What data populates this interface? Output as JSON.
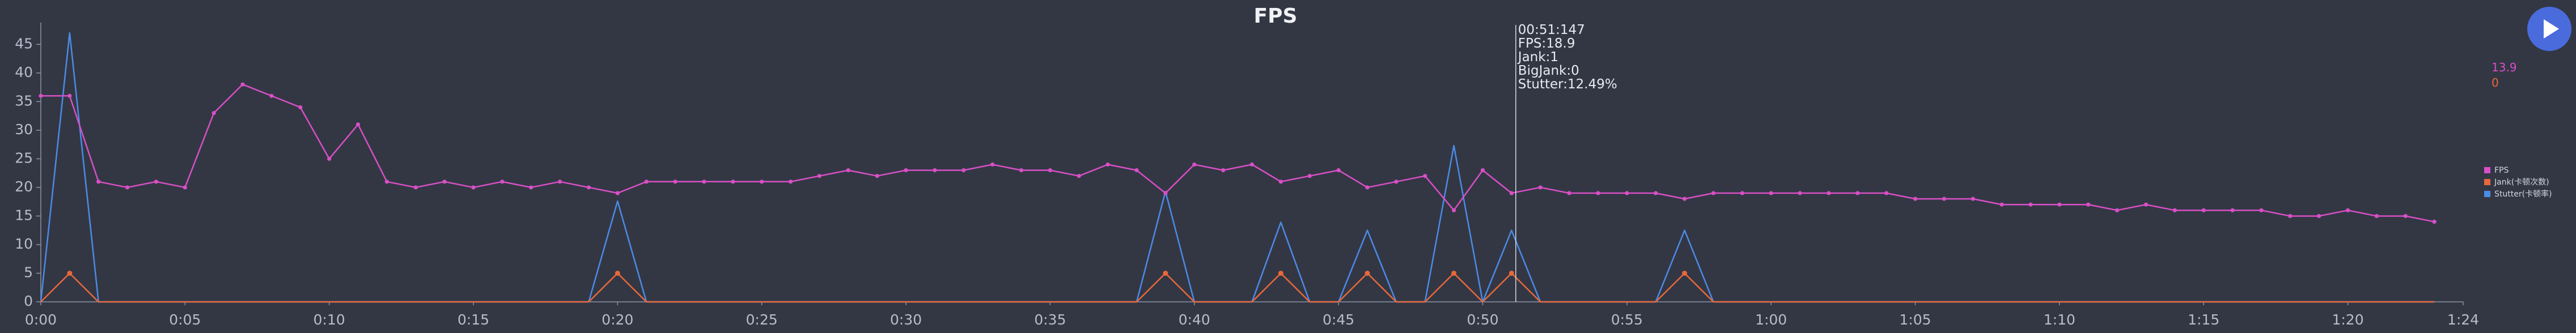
{
  "chart_data": {
    "type": "line",
    "title": "FPS",
    "x_tick_labels": [
      "0:00",
      "0:05",
      "0:10",
      "0:15",
      "0:20",
      "0:25",
      "0:30",
      "0:35",
      "0:40",
      "0:45",
      "0:50",
      "0:55",
      "1:00",
      "1:05",
      "1:10",
      "1:15",
      "1:20",
      "1:24"
    ],
    "y_tick_labels": [
      "0",
      "5",
      "10",
      "15",
      "20",
      "25",
      "30",
      "35",
      "40",
      "45"
    ],
    "xlim_seconds": [
      0,
      84
    ],
    "ylim": [
      0,
      48
    ],
    "grid": false,
    "legend_position": "right",
    "series": [
      {
        "name": "FPS",
        "color": "#d94fc6",
        "markers": true,
        "x": [
          0,
          1,
          2,
          3,
          4,
          5,
          6,
          7,
          8,
          9,
          10,
          11,
          12,
          13,
          14,
          15,
          16,
          17,
          18,
          19,
          20,
          21,
          22,
          23,
          24,
          25,
          26,
          27,
          28,
          29,
          30,
          31,
          32,
          33,
          34,
          35,
          36,
          37,
          38,
          39,
          40,
          41,
          42,
          43,
          44,
          45,
          46,
          47,
          48,
          49,
          50,
          51,
          52,
          53,
          54,
          55,
          56,
          57,
          58,
          59,
          60,
          61,
          62,
          63,
          64,
          65,
          66,
          67,
          68,
          69,
          70,
          71,
          72,
          73,
          74,
          75,
          76,
          77,
          78,
          79,
          80,
          81,
          82,
          83
        ],
        "values": [
          36,
          36,
          21,
          20,
          21,
          20,
          33,
          38,
          36,
          34,
          25,
          31,
          21,
          20,
          21,
          20,
          21,
          20,
          21,
          20,
          19,
          21,
          21,
          21,
          21,
          21,
          21,
          22,
          23,
          22,
          23,
          23,
          23,
          24,
          23,
          23,
          22,
          24,
          23,
          19,
          24,
          23,
          24,
          21,
          22,
          23,
          20,
          21,
          22,
          16,
          23,
          19,
          20,
          19,
          19,
          19,
          19,
          18,
          19,
          19,
          19,
          19,
          19,
          19,
          19,
          18,
          18,
          18,
          17,
          17,
          17,
          17,
          16,
          17,
          16,
          16,
          16,
          16,
          15,
          15,
          16,
          15,
          15,
          14
        ]
      },
      {
        "name": "Jank(卡顿次数)",
        "color": "#e8683b",
        "markers": false,
        "x": [
          0,
          1,
          2,
          19,
          20,
          21,
          38,
          39,
          40,
          42,
          43,
          44,
          45,
          46,
          47,
          48,
          49,
          50,
          51,
          52,
          56,
          57,
          58,
          83
        ],
        "values": [
          0,
          5,
          0,
          0,
          5,
          0,
          0,
          5,
          0,
          0,
          5,
          0,
          0,
          5,
          0,
          0,
          5,
          0,
          5,
          0,
          0,
          5,
          0,
          0
        ]
      },
      {
        "name": "Stutter(卡顿率)",
        "color": "#4b8be8",
        "markers": false,
        "x": [
          0,
          1,
          2,
          19,
          20,
          21,
          38,
          39,
          40,
          42,
          43,
          44,
          45,
          46,
          47,
          48,
          49,
          50,
          51,
          52,
          56,
          57,
          58,
          83
        ],
        "values": [
          0,
          47,
          0,
          0,
          17.6,
          0,
          0,
          19.3,
          0,
          0,
          13.9,
          0,
          0,
          12.5,
          0,
          0,
          27.3,
          0,
          12.5,
          0,
          0,
          12.5,
          0,
          0
        ]
      }
    ],
    "tooltip": {
      "x": 51.147,
      "lines": [
        "00:51:147",
        "FPS:18.9",
        "Jank:1",
        "BigJank:0",
        "Stutter:12.49%"
      ]
    },
    "current_values": [
      {
        "series": "FPS",
        "value": "13.9",
        "color": "#d94fc6"
      },
      {
        "series": "Jank",
        "value": "0",
        "color": "#e8683b"
      }
    ]
  },
  "controls": {
    "play_button": {
      "icon": "play-icon",
      "color": "#4a6bdc"
    }
  }
}
